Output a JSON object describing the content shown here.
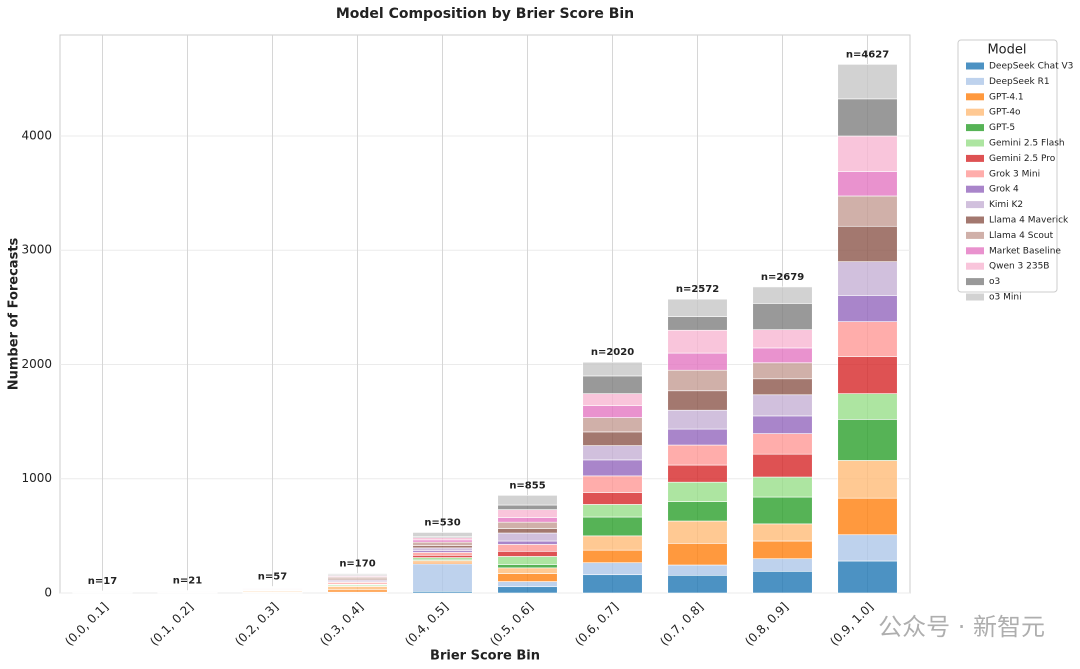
{
  "chart_data": {
    "type": "stacked_bar",
    "title": "Model Composition by Brier Score Bin",
    "x_label": "Brier Score Bin",
    "y_label": "Number of Forecasts",
    "legend_title": "Model",
    "legend": "outside-upper-right",
    "grid": true,
    "categories": [
      "(0.0, 0.1]",
      "(0.1, 0.2]",
      "(0.2, 0.3]",
      "(0.3, 0.4]",
      "(0.4, 0.5]",
      "(0.5, 0.6]",
      "(0.6, 0.7]",
      "(0.7, 0.8]",
      "(0.8, 0.9]",
      "(0.9, 1.0]"
    ],
    "totals": [
      17,
      21,
      57,
      170,
      530,
      855,
      2020,
      2572,
      2679,
      4627
    ],
    "total_labels": [
      "n=17",
      "n=21",
      "n=57",
      "n=170",
      "n=530",
      "n=855",
      "n=2020",
      "n=2572",
      "n=2679",
      "n=4627"
    ],
    "ylim": [
      0,
      4884
    ],
    "yticks": [
      0,
      1000,
      2000,
      3000,
      4000
    ],
    "series": [
      {
        "name": "DeepSeek Chat V3",
        "color": "#1f77b4",
        "values": [
          0,
          0,
          1,
          3,
          15,
          55,
          160,
          155,
          190,
          280
        ]
      },
      {
        "name": "DeepSeek R1",
        "color": "#aec7e8",
        "values": [
          0,
          1,
          2,
          5,
          240,
          45,
          105,
          90,
          110,
          230
        ]
      },
      {
        "name": "GPT-4.1",
        "color": "#ff7f0e",
        "values": [
          1,
          1,
          4,
          20,
          15,
          70,
          110,
          190,
          155,
          320
        ]
      },
      {
        "name": "GPT-4o",
        "color": "#ffbb78",
        "values": [
          2,
          3,
          8,
          30,
          15,
          50,
          125,
          195,
          150,
          330
        ]
      },
      {
        "name": "GPT-5",
        "color": "#2ca02c",
        "values": [
          1,
          1,
          2,
          5,
          10,
          30,
          165,
          170,
          235,
          360
        ]
      },
      {
        "name": "Gemini 2.5 Flash",
        "color": "#98df8a",
        "values": [
          1,
          1,
          3,
          10,
          15,
          70,
          110,
          170,
          175,
          225
        ]
      },
      {
        "name": "Gemini 2.5 Pro",
        "color": "#d62728",
        "values": [
          1,
          1,
          2,
          5,
          20,
          45,
          105,
          150,
          200,
          325
        ]
      },
      {
        "name": "Grok 3 Mini",
        "color": "#ff9896",
        "values": [
          2,
          2,
          5,
          15,
          25,
          60,
          145,
          175,
          180,
          305
        ]
      },
      {
        "name": "Grok 4",
        "color": "#9467bd",
        "values": [
          1,
          1,
          2,
          5,
          15,
          30,
          140,
          140,
          155,
          230
        ]
      },
      {
        "name": "Kimi K2",
        "color": "#c5b0d5",
        "values": [
          2,
          2,
          5,
          15,
          25,
          70,
          125,
          165,
          185,
          295
        ]
      },
      {
        "name": "Llama 4 Maverick",
        "color": "#8c564b",
        "values": [
          1,
          1,
          3,
          10,
          20,
          40,
          120,
          170,
          140,
          310
        ]
      },
      {
        "name": "Llama 4 Scout",
        "color": "#c49c94",
        "values": [
          2,
          2,
          6,
          15,
          30,
          55,
          125,
          180,
          140,
          265
        ]
      },
      {
        "name": "Market Baseline",
        "color": "#e377c2",
        "values": [
          0,
          1,
          2,
          5,
          20,
          40,
          105,
          150,
          130,
          215
        ]
      },
      {
        "name": "Qwen 3 235B",
        "color": "#f7b6d2",
        "values": [
          1,
          2,
          5,
          10,
          20,
          70,
          105,
          200,
          160,
          310
        ]
      },
      {
        "name": "o3",
        "color": "#7f7f7f",
        "values": [
          1,
          1,
          3,
          7,
          10,
          40,
          155,
          120,
          230,
          325
        ]
      },
      {
        "name": "o3 Mini",
        "color": "#c7c7c7",
        "values": [
          1,
          1,
          4,
          10,
          35,
          85,
          120,
          152,
          144,
          302
        ]
      }
    ]
  },
  "watermark": "公众号 · 新智元"
}
